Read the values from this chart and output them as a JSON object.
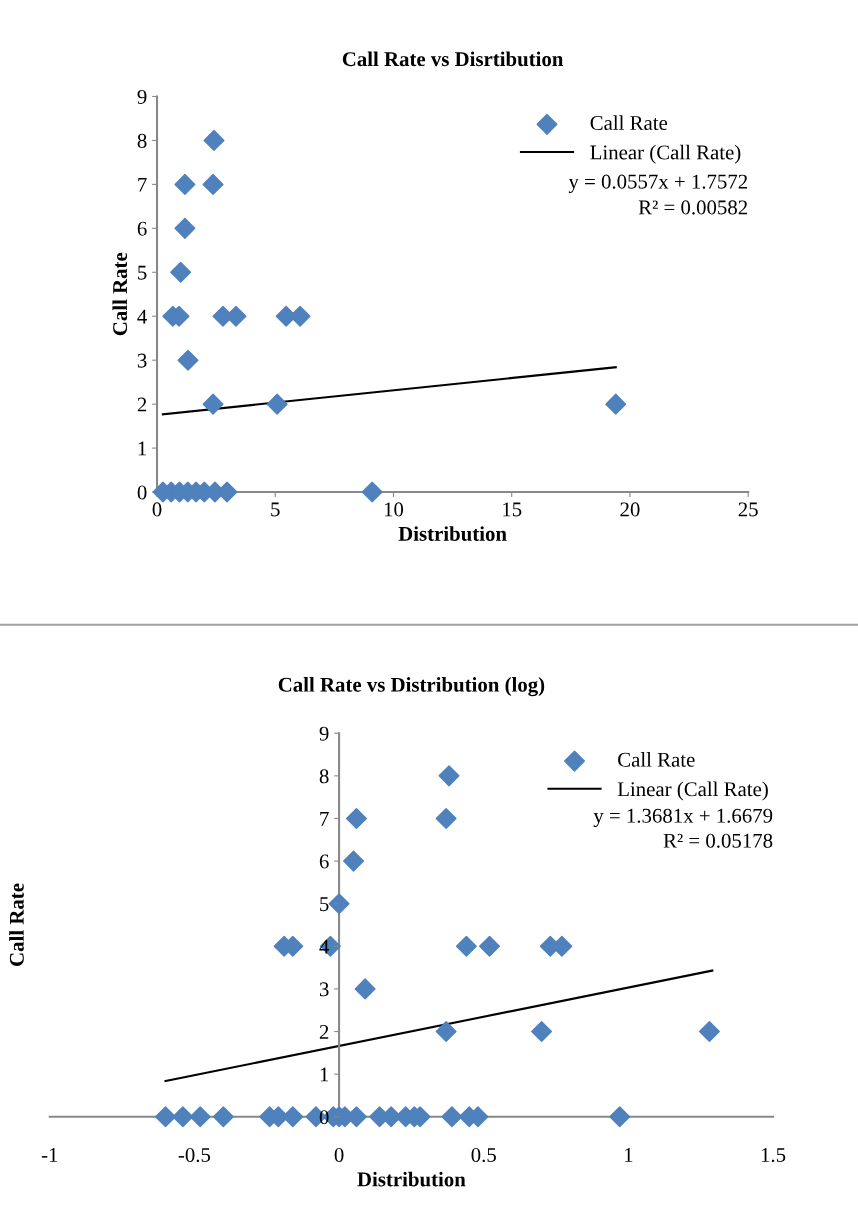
{
  "chart_data": [
    {
      "type": "scatter",
      "title": "Call Rate vs Disrtibution",
      "xlabel": "Distribution",
      "ylabel": "Call Rate",
      "legend": "top right",
      "grid": false,
      "xlim": [
        0,
        25
      ],
      "xticks": [
        0,
        5,
        10,
        15,
        20,
        25
      ],
      "ylim": [
        0,
        9
      ],
      "yticks": [
        0,
        1,
        2,
        3,
        4,
        5,
        6,
        7,
        8,
        9
      ],
      "annotations": [
        "y = 0.0557x + 1.7572",
        "R² = 0.00582"
      ],
      "series": [
        {
          "name": "Call Rate",
          "color": "#4f81bd",
          "marker": "diamond",
          "x": [
            2.41,
            1.18,
            2.37,
            1.18,
            1.0,
            0.67,
            0.93,
            2.79,
            3.34,
            5.46,
            6.05,
            1.31,
            2.37,
            5.08,
            19.4,
            0.25,
            0.6,
            0.95,
            1.3,
            1.65,
            2.0,
            2.45,
            2.96,
            9.1
          ],
          "values": [
            8,
            7,
            7,
            6,
            5,
            4,
            4,
            4,
            4,
            4,
            4,
            3,
            2,
            2,
            2,
            0,
            0,
            0,
            0,
            0,
            0,
            0,
            0,
            0
          ]
        },
        {
          "name": "Linear (Call Rate)",
          "type": "line",
          "color": "#000000",
          "x": [
            0.25,
            19.4
          ],
          "values": [
            1.77,
            2.84
          ]
        }
      ]
    },
    {
      "type": "scatter",
      "title": "Call Rate vs Distribution (log)",
      "xlabel": "Distribution",
      "ylabel": "Call Rate",
      "legend": "top right",
      "grid": false,
      "xlim": [
        -1,
        1.5
      ],
      "xticks": [
        -1,
        -0.5,
        0,
        0.5,
        1,
        1.5
      ],
      "ylim": [
        0,
        9
      ],
      "yticks": [
        0,
        1,
        2,
        3,
        4,
        5,
        6,
        7,
        8,
        9
      ],
      "annotations": [
        "y = 1.3681x + 1.6679",
        "R² = 0.05178"
      ],
      "series": [
        {
          "name": "Call Rate",
          "color": "#4f81bd",
          "marker": "diamond",
          "x": [
            0.38,
            0.06,
            0.37,
            0.05,
            0.0,
            -0.19,
            -0.16,
            -0.03,
            0.44,
            0.52,
            0.73,
            0.77,
            0.09,
            0.37,
            0.7,
            1.28,
            -0.6,
            -0.54,
            -0.48,
            -0.4,
            -0.24,
            -0.21,
            -0.16,
            -0.08,
            -0.02,
            0.0,
            0.02,
            0.06,
            0.14,
            0.18,
            0.23,
            0.26,
            0.28,
            0.39,
            0.45,
            0.48,
            0.97
          ],
          "values": [
            8,
            7,
            7,
            6,
            5,
            4,
            4,
            4,
            4,
            4,
            4,
            4,
            3,
            2,
            2,
            2,
            0,
            0,
            0,
            0,
            0,
            0,
            0,
            0,
            0,
            0,
            0,
            0,
            0,
            0,
            0,
            0,
            0,
            0,
            0,
            0,
            0
          ]
        },
        {
          "name": "Linear (Call Rate)",
          "type": "line",
          "color": "#000000",
          "x": [
            -0.6,
            1.29
          ],
          "values": [
            0.84,
            3.43
          ]
        }
      ]
    }
  ]
}
